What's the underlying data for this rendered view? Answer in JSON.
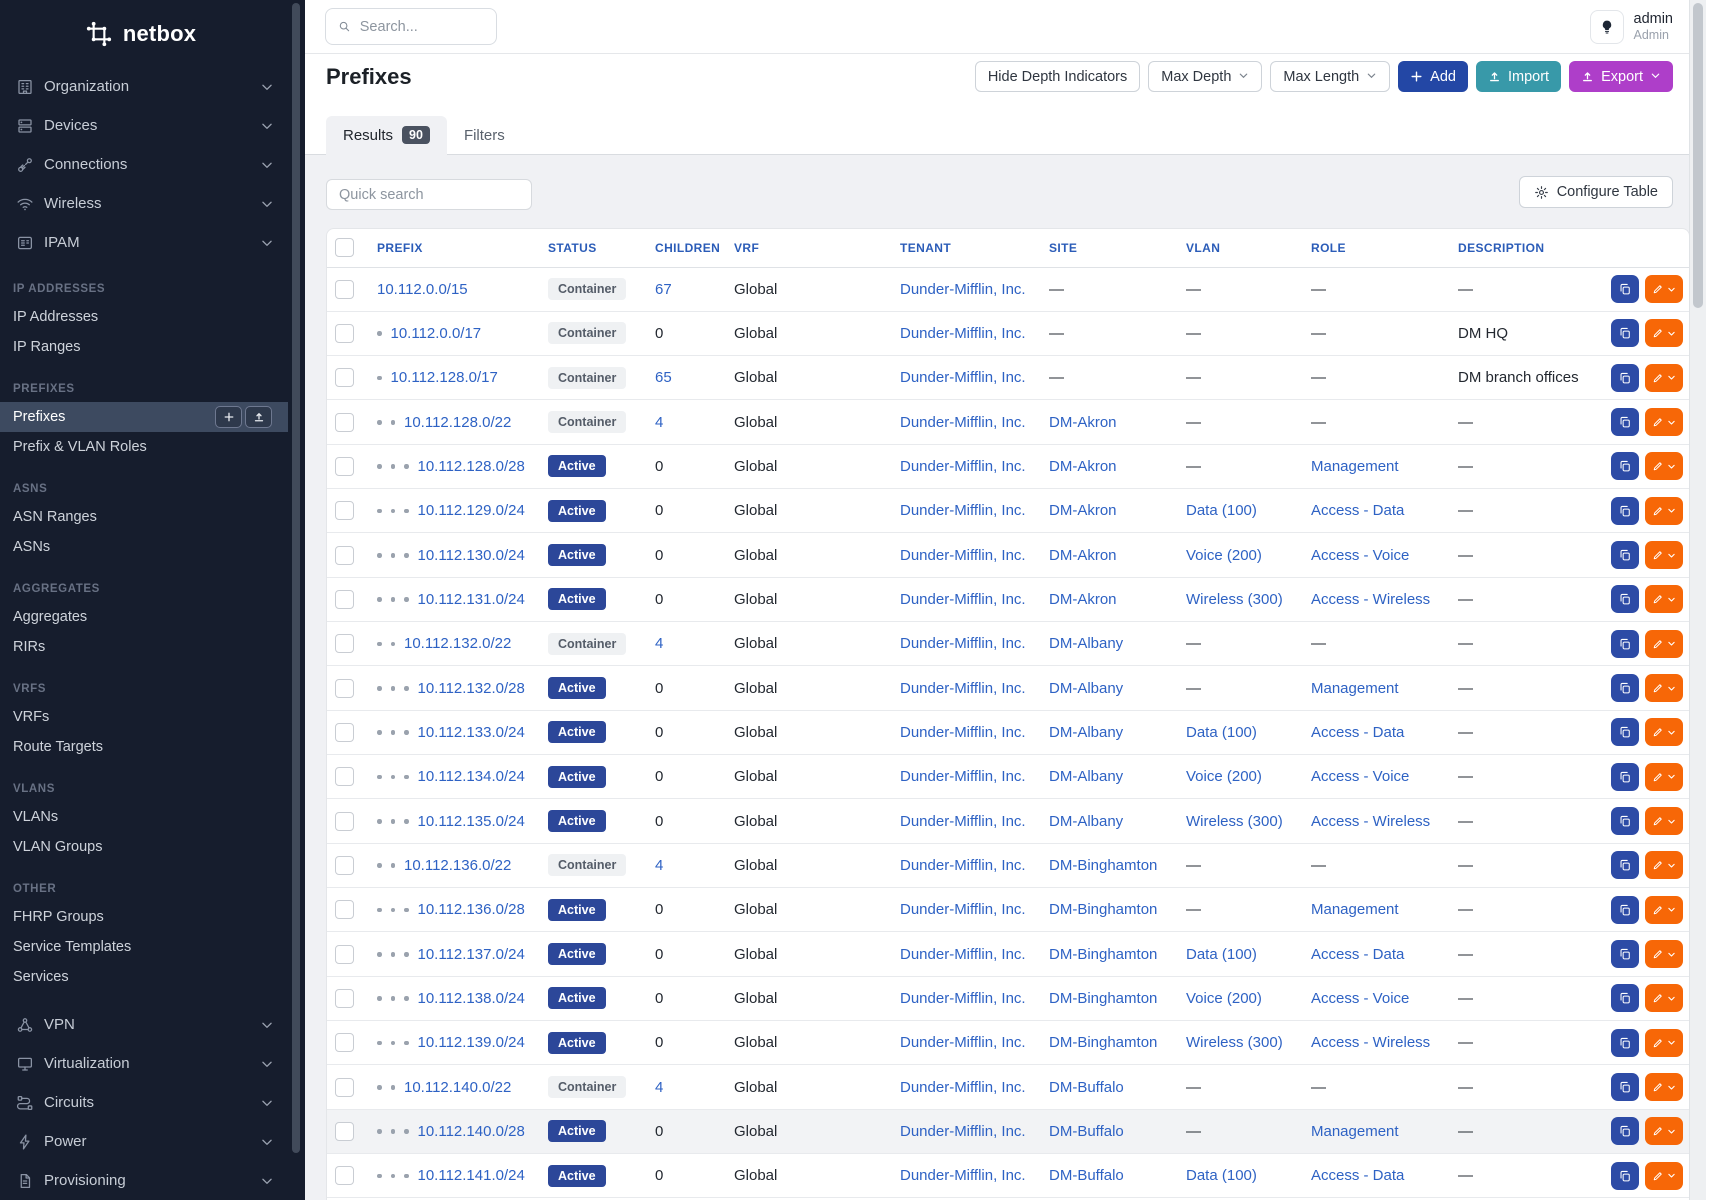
{
  "colors": {
    "sidebar_bg": "#161d2d",
    "sidebar_active_bg": "#3d4a60",
    "link_blue": "#2e62c4",
    "active_badge_bg": "#2c4799",
    "container_badge_bg": "#eff1f3",
    "add_button_bg": "#2347a5",
    "import_button_bg": "#3899a9",
    "export_button_bg": "#ae3ec9",
    "edit_button_bg": "#f76707",
    "copy_button_bg": "#2d4ba6"
  },
  "sidebar": {
    "logo_text": "netbox",
    "top_items": [
      {
        "label": "Organization",
        "icon": "building-icon"
      },
      {
        "label": "Devices",
        "icon": "server-icon"
      },
      {
        "label": "Connections",
        "icon": "plug-icon"
      },
      {
        "label": "Wireless",
        "icon": "wifi-icon"
      },
      {
        "label": "IPAM",
        "icon": "address-book-icon"
      }
    ],
    "sections": [
      {
        "label": "IP ADDRESSES",
        "items": [
          {
            "label": "IP Addresses"
          },
          {
            "label": "IP Ranges"
          }
        ]
      },
      {
        "label": "PREFIXES",
        "items": [
          {
            "label": "Prefixes",
            "active": true,
            "buttons": [
              {
                "icon": "plus-icon"
              },
              {
                "icon": "upload-icon"
              }
            ]
          },
          {
            "label": "Prefix & VLAN Roles"
          }
        ]
      },
      {
        "label": "ASNS",
        "items": [
          {
            "label": "ASN Ranges"
          },
          {
            "label": "ASNs"
          }
        ]
      },
      {
        "label": "AGGREGATES",
        "items": [
          {
            "label": "Aggregates"
          },
          {
            "label": "RIRs"
          }
        ]
      },
      {
        "label": "VRFS",
        "items": [
          {
            "label": "VRFs"
          },
          {
            "label": "Route Targets"
          }
        ]
      },
      {
        "label": "VLANS",
        "items": [
          {
            "label": "VLANs"
          },
          {
            "label": "VLAN Groups"
          }
        ]
      },
      {
        "label": "OTHER",
        "items": [
          {
            "label": "FHRP Groups"
          },
          {
            "label": "Service Templates"
          },
          {
            "label": "Services"
          }
        ]
      }
    ],
    "bottom_items": [
      {
        "label": "VPN",
        "icon": "network-icon"
      },
      {
        "label": "Virtualization",
        "icon": "monitor-icon"
      },
      {
        "label": "Circuits",
        "icon": "circuit-icon"
      },
      {
        "label": "Power",
        "icon": "bolt-icon"
      },
      {
        "label": "Provisioning",
        "icon": "document-icon"
      }
    ]
  },
  "topbar": {
    "search_placeholder": "Search...",
    "user_name": "admin",
    "user_role": "Admin"
  },
  "page": {
    "title": "Prefixes",
    "toolbar": {
      "hide_depth": "Hide Depth Indicators",
      "max_depth": "Max Depth",
      "max_length": "Max Length",
      "add": "Add",
      "import": "Import",
      "export": "Export"
    },
    "tabs": {
      "results": "Results",
      "results_count": "90",
      "filters": "Filters"
    },
    "quick_search_placeholder": "Quick search",
    "configure_table": "Configure Table"
  },
  "table": {
    "columns": [
      "PREFIX",
      "STATUS",
      "CHILDREN",
      "VRF",
      "TENANT",
      "SITE",
      "VLAN",
      "ROLE",
      "DESCRIPTION"
    ],
    "rows": [
      {
        "depth": 0,
        "prefix": "10.112.0.0/15",
        "status": "Container",
        "children": "67",
        "vrf": "Global",
        "tenant": "Dunder-Mifflin, Inc.",
        "site": "—",
        "vlan": "—",
        "role": "—",
        "description": "—"
      },
      {
        "depth": 1,
        "prefix": "10.112.0.0/17",
        "status": "Container",
        "children": "0",
        "vrf": "Global",
        "tenant": "Dunder-Mifflin, Inc.",
        "site": "—",
        "vlan": "—",
        "role": "—",
        "description": "DM HQ"
      },
      {
        "depth": 1,
        "prefix": "10.112.128.0/17",
        "status": "Container",
        "children": "65",
        "vrf": "Global",
        "tenant": "Dunder-Mifflin, Inc.",
        "site": "—",
        "vlan": "—",
        "role": "—",
        "description": "DM branch offices"
      },
      {
        "depth": 2,
        "prefix": "10.112.128.0/22",
        "status": "Container",
        "children": "4",
        "vrf": "Global",
        "tenant": "Dunder-Mifflin, Inc.",
        "site": "DM-Akron",
        "vlan": "—",
        "role": "—",
        "description": "—"
      },
      {
        "depth": 3,
        "prefix": "10.112.128.0/28",
        "status": "Active",
        "children": "0",
        "vrf": "Global",
        "tenant": "Dunder-Mifflin, Inc.",
        "site": "DM-Akron",
        "vlan": "—",
        "role": "Management",
        "description": "—"
      },
      {
        "depth": 3,
        "prefix": "10.112.129.0/24",
        "status": "Active",
        "children": "0",
        "vrf": "Global",
        "tenant": "Dunder-Mifflin, Inc.",
        "site": "DM-Akron",
        "vlan": "Data (100)",
        "role": "Access - Data",
        "description": "—"
      },
      {
        "depth": 3,
        "prefix": "10.112.130.0/24",
        "status": "Active",
        "children": "0",
        "vrf": "Global",
        "tenant": "Dunder-Mifflin, Inc.",
        "site": "DM-Akron",
        "vlan": "Voice (200)",
        "role": "Access - Voice",
        "description": "—"
      },
      {
        "depth": 3,
        "prefix": "10.112.131.0/24",
        "status": "Active",
        "children": "0",
        "vrf": "Global",
        "tenant": "Dunder-Mifflin, Inc.",
        "site": "DM-Akron",
        "vlan": "Wireless (300)",
        "role": "Access - Wireless",
        "description": "—"
      },
      {
        "depth": 2,
        "prefix": "10.112.132.0/22",
        "status": "Container",
        "children": "4",
        "vrf": "Global",
        "tenant": "Dunder-Mifflin, Inc.",
        "site": "DM-Albany",
        "vlan": "—",
        "role": "—",
        "description": "—"
      },
      {
        "depth": 3,
        "prefix": "10.112.132.0/28",
        "status": "Active",
        "children": "0",
        "vrf": "Global",
        "tenant": "Dunder-Mifflin, Inc.",
        "site": "DM-Albany",
        "vlan": "—",
        "role": "Management",
        "description": "—"
      },
      {
        "depth": 3,
        "prefix": "10.112.133.0/24",
        "status": "Active",
        "children": "0",
        "vrf": "Global",
        "tenant": "Dunder-Mifflin, Inc.",
        "site": "DM-Albany",
        "vlan": "Data (100)",
        "role": "Access - Data",
        "description": "—"
      },
      {
        "depth": 3,
        "prefix": "10.112.134.0/24",
        "status": "Active",
        "children": "0",
        "vrf": "Global",
        "tenant": "Dunder-Mifflin, Inc.",
        "site": "DM-Albany",
        "vlan": "Voice (200)",
        "role": "Access - Voice",
        "description": "—"
      },
      {
        "depth": 3,
        "prefix": "10.112.135.0/24",
        "status": "Active",
        "children": "0",
        "vrf": "Global",
        "tenant": "Dunder-Mifflin, Inc.",
        "site": "DM-Albany",
        "vlan": "Wireless (300)",
        "role": "Access - Wireless",
        "description": "—"
      },
      {
        "depth": 2,
        "prefix": "10.112.136.0/22",
        "status": "Container",
        "children": "4",
        "vrf": "Global",
        "tenant": "Dunder-Mifflin, Inc.",
        "site": "DM-Binghamton",
        "vlan": "—",
        "role": "—",
        "description": "—"
      },
      {
        "depth": 3,
        "prefix": "10.112.136.0/28",
        "status": "Active",
        "children": "0",
        "vrf": "Global",
        "tenant": "Dunder-Mifflin, Inc.",
        "site": "DM-Binghamton",
        "vlan": "—",
        "role": "Management",
        "description": "—"
      },
      {
        "depth": 3,
        "prefix": "10.112.137.0/24",
        "status": "Active",
        "children": "0",
        "vrf": "Global",
        "tenant": "Dunder-Mifflin, Inc.",
        "site": "DM-Binghamton",
        "vlan": "Data (100)",
        "role": "Access - Data",
        "description": "—"
      },
      {
        "depth": 3,
        "prefix": "10.112.138.0/24",
        "status": "Active",
        "children": "0",
        "vrf": "Global",
        "tenant": "Dunder-Mifflin, Inc.",
        "site": "DM-Binghamton",
        "vlan": "Voice (200)",
        "role": "Access - Voice",
        "description": "—"
      },
      {
        "depth": 3,
        "prefix": "10.112.139.0/24",
        "status": "Active",
        "children": "0",
        "vrf": "Global",
        "tenant": "Dunder-Mifflin, Inc.",
        "site": "DM-Binghamton",
        "vlan": "Wireless (300)",
        "role": "Access - Wireless",
        "description": "—"
      },
      {
        "depth": 2,
        "prefix": "10.112.140.0/22",
        "status": "Container",
        "children": "4",
        "vrf": "Global",
        "tenant": "Dunder-Mifflin, Inc.",
        "site": "DM-Buffalo",
        "vlan": "—",
        "role": "—",
        "description": "—"
      },
      {
        "depth": 3,
        "prefix": "10.112.140.0/28",
        "status": "Active",
        "children": "0",
        "vrf": "Global",
        "tenant": "Dunder-Mifflin, Inc.",
        "site": "DM-Buffalo",
        "vlan": "—",
        "role": "Management",
        "description": "—",
        "highlight": true
      },
      {
        "depth": 3,
        "prefix": "10.112.141.0/24",
        "status": "Active",
        "children": "0",
        "vrf": "Global",
        "tenant": "Dunder-Mifflin, Inc.",
        "site": "DM-Buffalo",
        "vlan": "Data (100)",
        "role": "Access - Data",
        "description": "—"
      }
    ]
  }
}
